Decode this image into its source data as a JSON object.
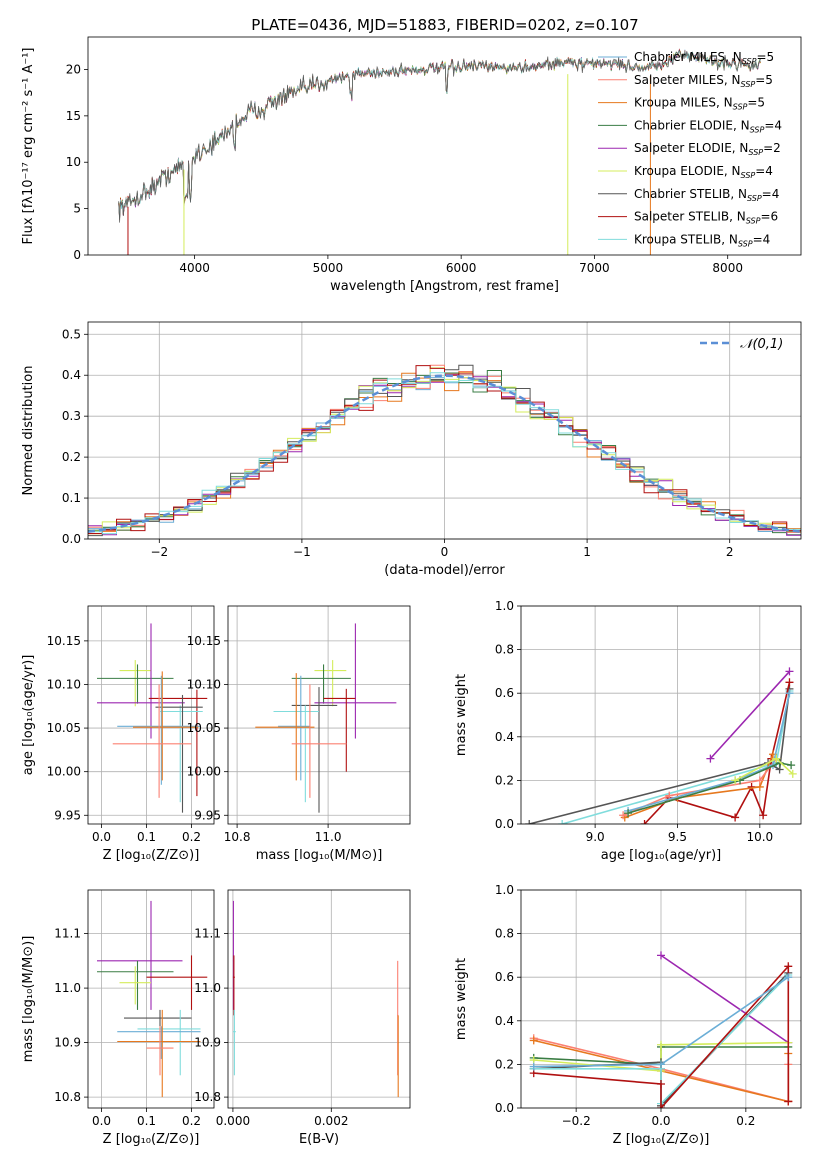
{
  "figure_title": "PLATE=0436, MJD=51883, FIBERID=0202, z=0.107",
  "colors": {
    "chabrier_miles": "#6baed6",
    "salpeter_miles": "#fb8072",
    "kroupa_miles": "#e6781e",
    "chabrier_elodie": "#3a7d44",
    "salpeter_elodie": "#9c27b0",
    "kroupa_elodie": "#d4ec5c",
    "chabrier_stelib": "#555555",
    "salpeter_stelib": "#b01010",
    "kroupa_stelib": "#80dcdc",
    "gauss": "#5b8fd6"
  },
  "series_legend": [
    {
      "key": "chabrier_miles",
      "imf": "Chabrier",
      "lib": "MILES",
      "nssp": "5"
    },
    {
      "key": "salpeter_miles",
      "imf": "Salpeter",
      "lib": "MILES",
      "nssp": "5"
    },
    {
      "key": "kroupa_miles",
      "imf": "Kroupa",
      "lib": "MILES",
      "nssp": "5"
    },
    {
      "key": "chabrier_elodie",
      "imf": "Chabrier",
      "lib": "ELODIE",
      "nssp": "4"
    },
    {
      "key": "salpeter_elodie",
      "imf": "Salpeter",
      "lib": "ELODIE",
      "nssp": "2"
    },
    {
      "key": "kroupa_elodie",
      "imf": "Kroupa",
      "lib": "ELODIE",
      "nssp": "4"
    },
    {
      "key": "chabrier_stelib",
      "imf": "Chabrier",
      "lib": "STELIB",
      "nssp": "4"
    },
    {
      "key": "salpeter_stelib",
      "imf": "Salpeter",
      "lib": "STELIB",
      "nssp": "6"
    },
    {
      "key": "kroupa_stelib",
      "imf": "Kroupa",
      "lib": "STELIB",
      "nssp": "4"
    }
  ],
  "chart_data": [
    {
      "id": "spectrum",
      "type": "line",
      "xlabel": "wavelength [Angstrom, rest frame]",
      "ylabel": "Flux [fλ10⁻¹⁷ erg cm⁻² s⁻¹ A⁻¹]",
      "xlim": [
        3200,
        8550
      ],
      "ylim": [
        0,
        23.5
      ],
      "xticks": [
        4000,
        5000,
        6000,
        7000,
        8000
      ],
      "yticks": [
        0,
        5,
        10,
        15,
        20
      ],
      "continuum_x": [
        3430,
        3500,
        3600,
        3700,
        3800,
        3900,
        4000,
        4100,
        4200,
        4300,
        4400,
        4500,
        4600,
        4700,
        4800,
        4900,
        5000,
        5100,
        5200,
        5300,
        5400,
        5500,
        5600,
        5700,
        5800,
        5900,
        6000,
        6100,
        6200,
        6300,
        6400,
        6500,
        6600,
        6700,
        6800,
        6900,
        7000,
        7100,
        7200,
        7300,
        7400,
        7500,
        7600,
        7700,
        7800,
        7900,
        8000,
        8100,
        8200,
        8250
      ],
      "continuum_y": [
        5.2,
        5.5,
        6.5,
        7.5,
        8.8,
        9.5,
        10.8,
        11.6,
        12.6,
        14.2,
        15.2,
        15.8,
        16.6,
        17.2,
        17.8,
        18.3,
        18.9,
        19.2,
        19.5,
        19.6,
        19.7,
        19.8,
        19.9,
        20.0,
        20.1,
        20.2,
        20.3,
        20.3,
        20.3,
        20.2,
        20.2,
        20.3,
        20.5,
        20.6,
        20.8,
        20.6,
        20.6,
        20.7,
        20.5,
        20.3,
        20.2,
        20.4,
        21.2,
        21.6,
        21.3,
        20.8,
        20.6,
        20.7,
        20.4,
        20.8
      ],
      "drops": [
        {
          "x": 3500,
          "y": 5.2
        },
        {
          "x": 3920,
          "y": 9.2
        },
        {
          "x": 6800,
          "y": 19.5
        },
        {
          "x": 7420,
          "y": 19.3
        }
      ],
      "grid": false,
      "legend_position": "top-right"
    },
    {
      "id": "residual_hist",
      "type": "step-histogram",
      "xlabel": "(data-model)/error",
      "ylabel": "Normed distribution",
      "xlim": [
        -2.5,
        2.5
      ],
      "ylim": [
        0,
        0.53
      ],
      "xticks": [
        -2,
        -1,
        0,
        1,
        2
      ],
      "yticks": [
        0.0,
        0.1,
        0.2,
        0.3,
        0.4,
        0.5
      ],
      "bin_width": 0.1,
      "gauss_label": "𝒩(0,1)",
      "grid": true,
      "legend_position": "top-right"
    },
    {
      "id": "age_vs_Z",
      "type": "errorbar",
      "xlabel": "Z [log₁₀(Z/Z⊙)]",
      "ylabel": "age  [log₁₀(age/yr)]",
      "xlim": [
        -0.03,
        0.25
      ],
      "ylim": [
        9.94,
        10.19
      ],
      "xticks": [
        0.0,
        0.1,
        0.2
      ],
      "yticks": [
        9.95,
        10.0,
        10.05,
        10.1,
        10.15
      ],
      "points": [
        {
          "key": "kroupa_elodie",
          "x": 0.075,
          "y": 10.116,
          "xlo": 0.04,
          "xhi": 0.11,
          "ylo": 10.075,
          "yhi": 10.128
        },
        {
          "key": "chabrier_elodie",
          "x": 0.08,
          "y": 10.107,
          "xlo": -0.01,
          "xhi": 0.16,
          "ylo": 10.078,
          "yhi": 10.123
        },
        {
          "key": "salpeter_elodie",
          "x": 0.11,
          "y": 10.079,
          "xlo": -0.01,
          "xhi": 0.185,
          "ylo": 10.038,
          "yhi": 10.17
        },
        {
          "key": "salpeter_stelib",
          "x": 0.212,
          "y": 10.084,
          "xlo": 0.105,
          "xhi": 0.235,
          "ylo": 9.972,
          "yhi": 10.094
        },
        {
          "key": "kroupa_stelib",
          "x": 0.175,
          "y": 10.069,
          "xlo": 0.13,
          "xhi": 0.225,
          "ylo": 9.965,
          "yhi": 10.076
        },
        {
          "key": "chabrier_stelib",
          "x": 0.18,
          "y": 10.074,
          "xlo": 0.12,
          "xhi": 0.225,
          "ylo": 9.953,
          "yhi": 10.088
        },
        {
          "key": "chabrier_miles",
          "x": 0.133,
          "y": 10.052,
          "xlo": 0.035,
          "xhi": 0.22,
          "ylo": 9.985,
          "yhi": 10.11
        },
        {
          "key": "kroupa_miles",
          "x": 0.135,
          "y": 10.051,
          "xlo": 0.07,
          "xhi": 0.215,
          "ylo": 9.99,
          "yhi": 10.115
        },
        {
          "key": "salpeter_miles",
          "x": 0.128,
          "y": 10.032,
          "xlo": 0.025,
          "xhi": 0.2,
          "ylo": 9.97,
          "yhi": 10.1
        }
      ],
      "grid": true
    },
    {
      "id": "age_vs_mass",
      "type": "errorbar",
      "xlabel": "mass [log₁₀(M/M⊙)]",
      "ylabel": "",
      "xlim": [
        10.78,
        11.18
      ],
      "ylim": [
        9.94,
        10.19
      ],
      "xticks": [
        10.8,
        11.0
      ],
      "yticks": [
        9.95,
        10.0,
        10.05,
        10.1,
        10.15
      ],
      "points": [
        {
          "key": "kroupa_elodie",
          "x": 11.01,
          "y": 10.116,
          "xlo": 10.97,
          "xhi": 11.04,
          "ylo": 10.075,
          "yhi": 10.128
        },
        {
          "key": "chabrier_elodie",
          "x": 10.99,
          "y": 10.107,
          "xlo": 10.92,
          "xhi": 11.05,
          "ylo": 10.078,
          "yhi": 10.123
        },
        {
          "key": "salpeter_elodie",
          "x": 11.06,
          "y": 10.079,
          "xlo": 10.97,
          "xhi": 11.15,
          "ylo": 10.038,
          "yhi": 10.17
        },
        {
          "key": "salpeter_stelib",
          "x": 11.04,
          "y": 10.084,
          "xlo": 10.99,
          "xhi": 11.06,
          "ylo": 10.0,
          "yhi": 10.095
        },
        {
          "key": "chabrier_stelib",
          "x": 10.98,
          "y": 10.076,
          "xlo": 10.92,
          "xhi": 11.02,
          "ylo": 9.953,
          "yhi": 10.097
        },
        {
          "key": "kroupa_stelib",
          "x": 10.95,
          "y": 10.069,
          "xlo": 10.88,
          "xhi": 10.98,
          "ylo": 9.965,
          "yhi": 10.076
        },
        {
          "key": "chabrier_miles",
          "x": 10.94,
          "y": 10.052,
          "xlo": 10.89,
          "xhi": 10.96,
          "ylo": 9.99,
          "yhi": 10.11
        },
        {
          "key": "kroupa_miles",
          "x": 10.93,
          "y": 10.051,
          "xlo": 10.84,
          "xhi": 10.97,
          "ylo": 9.99,
          "yhi": 10.113
        },
        {
          "key": "salpeter_miles",
          "x": 10.96,
          "y": 10.032,
          "xlo": 10.92,
          "xhi": 11.04,
          "ylo": 9.97,
          "yhi": 10.1
        }
      ],
      "grid": true
    },
    {
      "id": "weight_vs_age",
      "type": "line",
      "xlabel": "age  [log₁₀(age/yr)]",
      "ylabel": "mass weight",
      "xlim": [
        8.55,
        10.25
      ],
      "ylim": [
        0,
        1.0
      ],
      "xticks": [
        9.0,
        9.5,
        10.0
      ],
      "yticks": [
        0.0,
        0.2,
        0.4,
        0.6,
        0.8,
        1.0
      ],
      "series": [
        {
          "key": "salpeter_elodie",
          "x": [
            9.7,
            10.18
          ],
          "y": [
            0.3,
            0.7
          ]
        },
        {
          "key": "kroupa_stelib",
          "x": [
            8.8,
            10.1,
            10.18
          ],
          "y": [
            0.0,
            0.28,
            0.61
          ]
        },
        {
          "key": "chabrier_stelib",
          "x": [
            8.6,
            10.05,
            10.12,
            10.18
          ],
          "y": [
            0.0,
            0.28,
            0.25,
            0.62
          ]
        },
        {
          "key": "salpeter_stelib",
          "x": [
            9.3,
            9.45,
            9.85,
            9.95,
            10.02,
            10.07,
            10.18
          ],
          "y": [
            0.0,
            0.12,
            0.03,
            0.17,
            0.04,
            0.3,
            0.65
          ]
        },
        {
          "key": "kroupa_miles",
          "x": [
            9.18,
            9.5,
            10.0,
            10.08
          ],
          "y": [
            0.03,
            0.12,
            0.17,
            0.32
          ]
        },
        {
          "key": "salpeter_miles",
          "x": [
            9.17,
            9.45,
            10.0,
            10.1
          ],
          "y": [
            0.04,
            0.13,
            0.2,
            0.3
          ]
        },
        {
          "key": "chabrier_miles",
          "x": [
            9.2,
            9.85,
            10.08,
            10.18
          ],
          "y": [
            0.06,
            0.2,
            0.27,
            0.6
          ]
        },
        {
          "key": "chabrier_elodie",
          "x": [
            9.2,
            9.88,
            10.12,
            10.19
          ],
          "y": [
            0.05,
            0.2,
            0.28,
            0.27
          ]
        },
        {
          "key": "kroupa_elodie",
          "x": [
            9.85,
            10.1,
            10.2
          ],
          "y": [
            0.2,
            0.3,
            0.23
          ]
        }
      ],
      "grid": true
    },
    {
      "id": "mass_vs_Z",
      "type": "errorbar",
      "xlabel": "Z [log₁₀(Z/Z⊙)]",
      "ylabel": "mass [log₁₀(M/M⊙)]",
      "xlim": [
        -0.03,
        0.25
      ],
      "ylim": [
        10.78,
        11.18
      ],
      "xticks": [
        0.0,
        0.1,
        0.2
      ],
      "yticks": [
        10.8,
        10.9,
        11.0,
        11.1
      ],
      "points": [
        {
          "key": "salpeter_elodie",
          "x": 0.11,
          "y": 11.05,
          "xlo": -0.01,
          "xhi": 0.18,
          "ylo": 10.96,
          "yhi": 11.16
        },
        {
          "key": "chabrier_elodie",
          "x": 0.08,
          "y": 11.03,
          "xlo": -0.01,
          "xhi": 0.16,
          "ylo": 10.96,
          "yhi": 11.05
        },
        {
          "key": "salpeter_stelib",
          "x": 0.2,
          "y": 11.02,
          "xlo": 0.1,
          "xhi": 0.235,
          "ylo": 10.96,
          "yhi": 11.06
        },
        {
          "key": "kroupa_elodie",
          "x": 0.075,
          "y": 11.01,
          "xlo": 0.04,
          "xhi": 0.11,
          "ylo": 10.97,
          "yhi": 11.04
        },
        {
          "key": "chabrier_stelib",
          "x": 0.13,
          "y": 10.945,
          "xlo": 0.05,
          "xhi": 0.2,
          "ylo": 10.93,
          "yhi": 10.96
        },
        {
          "key": "kroupa_stelib",
          "x": 0.175,
          "y": 10.925,
          "xlo": 0.08,
          "xhi": 0.22,
          "ylo": 10.84,
          "yhi": 10.96
        },
        {
          "key": "chabrier_miles",
          "x": 0.133,
          "y": 10.92,
          "xlo": 0.035,
          "xhi": 0.22,
          "ylo": 10.87,
          "yhi": 10.93
        },
        {
          "key": "kroupa_miles",
          "x": 0.135,
          "y": 10.902,
          "xlo": 0.035,
          "xhi": 0.22,
          "ylo": 10.8,
          "yhi": 10.96
        },
        {
          "key": "salpeter_miles",
          "x": 0.13,
          "y": 10.89,
          "xlo": 0.1,
          "xhi": 0.16,
          "ylo": 10.84,
          "yhi": 10.93
        }
      ],
      "grid": true
    },
    {
      "id": "mass_vs_ebv",
      "type": "errorbar",
      "xlabel": "E(B-V)",
      "ylabel": "",
      "xlim": [
        -0.0001,
        0.0036
      ],
      "ylim": [
        10.78,
        11.18
      ],
      "xticks": [
        0.0,
        0.002
      ],
      "yticks": [
        10.8,
        10.9,
        11.0,
        11.1
      ],
      "points": [
        {
          "key": "salpeter_elodie",
          "x": 1e-05,
          "y": 11.05,
          "xlo": 0.0,
          "xhi": 2e-05,
          "ylo": 10.96,
          "yhi": 11.16
        },
        {
          "key": "salpeter_stelib",
          "x": 2e-05,
          "y": 11.02,
          "xlo": 0.0,
          "xhi": 4e-05,
          "ylo": 10.95,
          "yhi": 11.06
        },
        {
          "key": "kroupa_stelib",
          "x": 3e-05,
          "y": 10.92,
          "xlo": 0.0,
          "xhi": 6e-05,
          "ylo": 10.84,
          "yhi": 10.96
        },
        {
          "key": "salpeter_miles",
          "x": 0.00335,
          "y": 10.95,
          "xlo": 0.00334,
          "xhi": 0.00336,
          "ylo": 10.84,
          "yhi": 11.05
        },
        {
          "key": "kroupa_miles",
          "x": 0.00336,
          "y": 10.9,
          "xlo": 0.00335,
          "xhi": 0.00337,
          "ylo": 10.8,
          "yhi": 10.95
        }
      ],
      "grid": true
    },
    {
      "id": "weight_vs_Z",
      "type": "line",
      "xlabel": "Z [log₁₀(Z/Z⊙)]",
      "ylabel": "mass weight",
      "xlim": [
        -0.33,
        0.33
      ],
      "ylim": [
        0,
        1.0
      ],
      "xticks": [
        -0.2,
        0.0,
        0.2
      ],
      "yticks": [
        0.0,
        0.2,
        0.4,
        0.6,
        0.8,
        1.0
      ],
      "series": [
        {
          "key": "salpeter_elodie",
          "x": [
            0.0,
            0.3
          ],
          "y": [
            0.7,
            0.3
          ]
        },
        {
          "key": "salpeter_miles",
          "x": [
            -0.3,
            0.0,
            0.3,
            0.3
          ],
          "y": [
            0.32,
            0.18,
            0.03,
            0.2
          ]
        },
        {
          "key": "kroupa_miles",
          "x": [
            -0.3,
            0.0,
            0.3,
            0.3
          ],
          "y": [
            0.31,
            0.17,
            0.03,
            0.25
          ]
        },
        {
          "key": "chabrier_elodie",
          "x": [
            -0.3,
            0.0,
            0.0,
            0.3
          ],
          "y": [
            0.23,
            0.2,
            0.28,
            0.28
          ]
        },
        {
          "key": "kroupa_elodie",
          "x": [
            -0.3,
            0.0,
            0.0,
            0.3
          ],
          "y": [
            0.22,
            0.17,
            0.29,
            0.3
          ]
        },
        {
          "key": "chabrier_stelib",
          "x": [
            -0.3,
            0.0,
            0.0,
            0.3
          ],
          "y": [
            0.18,
            0.21,
            0.01,
            0.62
          ]
        },
        {
          "key": "kroupa_stelib",
          "x": [
            -0.3,
            0.0,
            0.0,
            0.3
          ],
          "y": [
            0.18,
            0.18,
            0.02,
            0.61
          ]
        },
        {
          "key": "salpeter_stelib",
          "x": [
            -0.3,
            0.0,
            0.0,
            0.3,
            0.3
          ],
          "y": [
            0.16,
            0.11,
            0.0,
            0.65,
            0.03
          ]
        },
        {
          "key": "chabrier_miles",
          "x": [
            -0.3,
            0.0,
            0.3
          ],
          "y": [
            0.19,
            0.2,
            0.6
          ]
        }
      ],
      "grid": true
    }
  ]
}
